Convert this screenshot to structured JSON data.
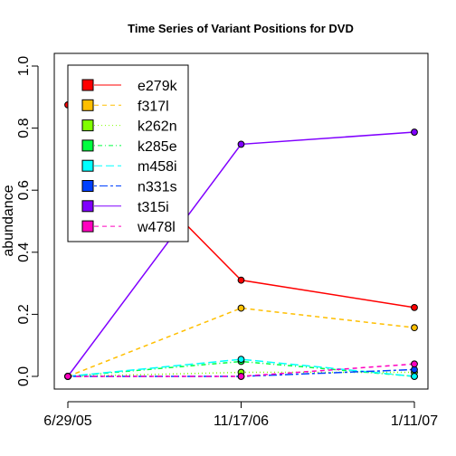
{
  "chart_data": {
    "type": "line",
    "title": "Time Series of Variant Positions for DVD",
    "xlabel": "",
    "ylabel": "abundance",
    "x": [
      "6/29/05",
      "11/17/06",
      "1/11/07"
    ],
    "ylim": [
      0,
      1
    ],
    "yticks": [
      "0.0",
      "0.2",
      "0.4",
      "0.6",
      "0.8",
      "1.0"
    ],
    "legend_position": "top-left",
    "grid": false,
    "series": [
      {
        "name": "e279k",
        "color": "#ff0000",
        "dash": "solid",
        "values": [
          0.875,
          0.31,
          0.222
        ]
      },
      {
        "name": "f317l",
        "color": "#ffbf00",
        "dash": "dashed",
        "values": [
          0.0,
          0.22,
          0.157
        ]
      },
      {
        "name": "k262n",
        "color": "#80ff00",
        "dash": "dotted",
        "values": [
          0.0,
          0.013,
          0.013
        ]
      },
      {
        "name": "k285e",
        "color": "#00ff40",
        "dash": "dotdash",
        "values": [
          0.0,
          0.048,
          0.0
        ]
      },
      {
        "name": "m458i",
        "color": "#00ffff",
        "dash": "longdash",
        "values": [
          0.0,
          0.055,
          0.0
        ]
      },
      {
        "name": "n331s",
        "color": "#0040ff",
        "dash": "twodash",
        "values": [
          0.0,
          0.0,
          0.022
        ]
      },
      {
        "name": "t315i",
        "color": "#8000ff",
        "dash": "solid",
        "values": [
          0.0,
          0.748,
          0.787
        ]
      },
      {
        "name": "w478l",
        "color": "#ff00bf",
        "dash": "dashed",
        "values": [
          0.0,
          0.0,
          0.04
        ]
      }
    ]
  }
}
